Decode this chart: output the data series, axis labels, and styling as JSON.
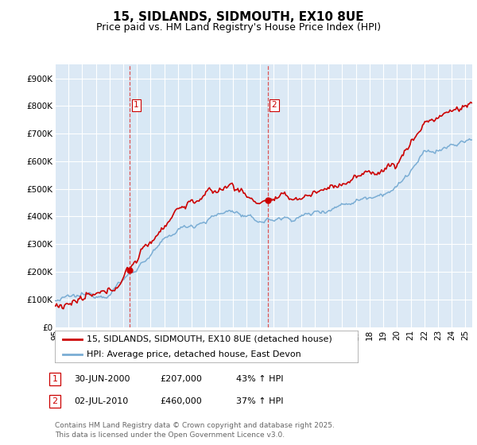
{
  "title": "15, SIDLANDS, SIDMOUTH, EX10 8UE",
  "subtitle": "Price paid vs. HM Land Registry's House Price Index (HPI)",
  "ylim": [
    0,
    950000
  ],
  "yticks": [
    0,
    100000,
    200000,
    300000,
    400000,
    500000,
    600000,
    700000,
    800000,
    900000
  ],
  "ytick_labels": [
    "£0",
    "£100K",
    "£200K",
    "£300K",
    "£400K",
    "£500K",
    "£600K",
    "£700K",
    "£800K",
    "£900K"
  ],
  "background_color": "#ffffff",
  "plot_bg_color": "#dce9f5",
  "grid_color": "#ffffff",
  "red_color": "#cc0000",
  "blue_color": "#7aadd4",
  "vline_color": "#dd5555",
  "shade_color": "#d8e8f5",
  "sale1_year": 2000.5,
  "sale2_year": 2010.54,
  "sale1_price": 207000,
  "sale2_price": 460000,
  "legend_line1": "15, SIDLANDS, SIDMOUTH, EX10 8UE (detached house)",
  "legend_line2": "HPI: Average price, detached house, East Devon",
  "footer": "Contains HM Land Registry data © Crown copyright and database right 2025.\nThis data is licensed under the Open Government Licence v3.0.",
  "title_fontsize": 11,
  "subtitle_fontsize": 9,
  "tick_fontsize": 7.5,
  "legend_fontsize": 8,
  "annotation_fontsize": 8,
  "footer_fontsize": 6.5,
  "xlim_start": 1995.0,
  "xlim_end": 2025.5
}
